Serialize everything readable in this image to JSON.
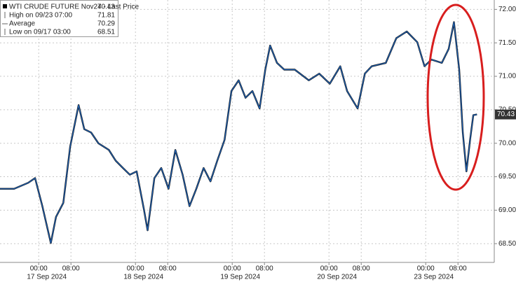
{
  "chart_data": {
    "type": "line",
    "legend": {
      "title": "WTI CRUDE FUTURE Nov24 - Last Price",
      "last": 70.43,
      "rows": [
        {
          "label": "High on 09/23 07:00",
          "value": 71.81
        },
        {
          "label": "Average",
          "value": 70.29
        },
        {
          "label": "Low on 09/17 03:00",
          "value": 68.51
        }
      ]
    },
    "x": [
      -9.6,
      -6.1,
      -2.6,
      -0.9,
      0.9,
      3,
      4.3,
      6.1,
      7.8,
      9.9,
      11.3,
      13,
      14.8,
      17.4,
      19.1,
      20.9,
      22.6,
      24.3,
      26.1,
      27,
      28.7,
      30.4,
      32.2,
      33.9,
      35.7,
      37.4,
      39.1,
      40.9,
      42.6,
      44.3,
      46.1,
      47.8,
      49.6,
      51.3,
      53,
      54.8,
      56.2,
      57.4,
      59.1,
      60.9,
      63.5,
      67,
      69.6,
      72.2,
      74.8,
      76.5,
      79.1,
      80.9,
      82.6,
      86.1,
      88.7,
      91.3,
      93.9,
      95.7,
      97.4,
      100,
      101.7,
      103,
      104.3,
      105.2,
      106.1,
      107,
      107.8,
      108.7
    ],
    "series": [
      {
        "name": "WTI CRUDE FUTURE Nov24",
        "color": "#1f63b8",
        "values": [
          69.32,
          69.32,
          69.41,
          69.48,
          69.06,
          68.51,
          68.9,
          69.11,
          69.95,
          70.57,
          70.21,
          70.16,
          70.0,
          69.9,
          69.74,
          69.63,
          69.53,
          69.58,
          69.01,
          68.7,
          69.48,
          69.63,
          69.32,
          69.9,
          69.53,
          69.06,
          69.32,
          69.63,
          69.43,
          69.74,
          70.05,
          70.78,
          70.94,
          70.68,
          70.78,
          70.52,
          71.1,
          71.46,
          71.2,
          71.1,
          71.1,
          70.94,
          71.04,
          70.89,
          71.15,
          70.78,
          70.52,
          71.04,
          71.15,
          71.2,
          71.57,
          71.67,
          71.51,
          71.15,
          71.25,
          71.2,
          71.41,
          71.81,
          71.1,
          70.16,
          69.58,
          70.05,
          70.42,
          70.43
        ]
      }
    ],
    "xlim": [
      -9.6,
      113
    ],
    "xticks": [
      {
        "value": 0,
        "label": "00:00"
      },
      {
        "value": 8,
        "label": "08:00"
      },
      {
        "value": 24,
        "label": "00:00"
      },
      {
        "value": 32,
        "label": "08:00"
      },
      {
        "value": 48,
        "label": "00:00"
      },
      {
        "value": 56,
        "label": "08:00"
      },
      {
        "value": 72,
        "label": "00:00"
      },
      {
        "value": 80,
        "label": "08:00"
      },
      {
        "value": 96,
        "label": "00:00"
      },
      {
        "value": 104,
        "label": "08:00"
      }
    ],
    "date_labels": [
      {
        "value": 2,
        "label": "17 Sep 2024"
      },
      {
        "value": 26,
        "label": "18 Sep 2024"
      },
      {
        "value": 50,
        "label": "19 Sep 2024"
      },
      {
        "value": 74,
        "label": "20 Sep 2024"
      },
      {
        "value": 98,
        "label": "23 Sep 2024"
      }
    ],
    "ylim": [
      68.22,
      72.14
    ],
    "yticks": [
      {
        "value": 68.5,
        "label": "68.50"
      },
      {
        "value": 69,
        "label": "69.00"
      },
      {
        "value": 69.5,
        "label": "69.50"
      },
      {
        "value": 70,
        "label": "70.00"
      },
      {
        "value": 70.5,
        "label": "70.50"
      },
      {
        "value": 71,
        "label": "71.00"
      },
      {
        "value": 71.5,
        "label": "71.50"
      },
      {
        "value": 72,
        "label": "72.00"
      }
    ],
    "grid": true
  }
}
